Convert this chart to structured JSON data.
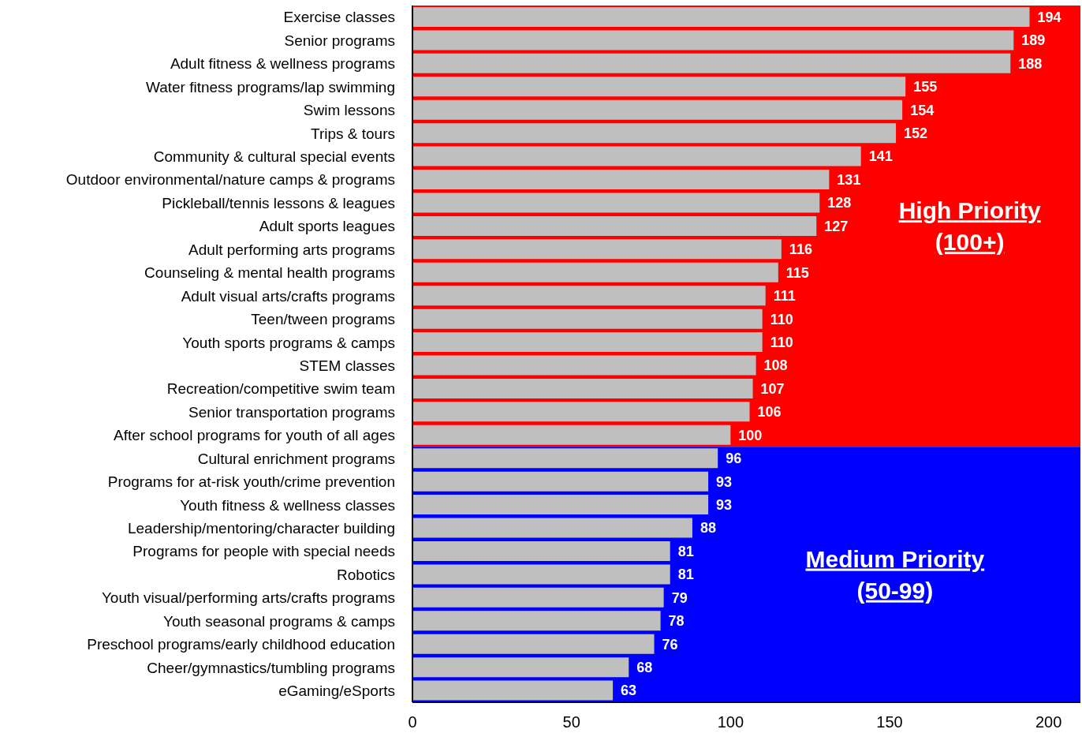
{
  "chart_data": {
    "type": "bar",
    "orientation": "horizontal",
    "categories": [
      "Exercise classes",
      "Senior programs",
      "Adult fitness & wellness programs",
      "Water fitness programs/lap swimming",
      "Swim lessons",
      "Trips & tours",
      "Community & cultural special events",
      "Outdoor environmental/nature camps & programs",
      "Pickleball/tennis lessons & leagues",
      "Adult sports leagues",
      "Adult performing arts programs",
      "Counseling & mental health programs",
      "Adult visual arts/crafts programs",
      "Teen/tween programs",
      "Youth sports programs & camps",
      "STEM classes",
      "Recreation/competitive swim team",
      "Senior transportation programs",
      "After school programs for youth of all ages",
      "Cultural enrichment programs",
      "Programs for at-risk youth/crime prevention",
      "Youth fitness & wellness classes",
      "Leadership/mentoring/character building",
      "Programs for people with special needs",
      "Robotics",
      "Youth visual/performing arts/crafts programs",
      "Youth seasonal programs & camps",
      "Preschool programs/early childhood education",
      "Cheer/gymnastics/tumbling programs",
      "eGaming/eSports"
    ],
    "values": [
      194,
      189,
      188,
      155,
      154,
      152,
      141,
      131,
      128,
      127,
      116,
      115,
      111,
      110,
      110,
      108,
      107,
      106,
      100,
      96,
      93,
      93,
      88,
      81,
      81,
      79,
      78,
      76,
      68,
      63
    ],
    "color": "#bfbfbf",
    "xlim": [
      0,
      210
    ],
    "xticks": [
      0,
      50,
      100,
      150,
      200
    ],
    "data_labels": true,
    "bands": [
      {
        "axis": "y",
        "from": "Exercise classes",
        "to": "After school programs for youth of all ages",
        "label": "High Priority\n(100+)",
        "color": "#ff0000"
      },
      {
        "axis": "y",
        "from": "Cultural enrichment programs",
        "to": "eGaming/eSports",
        "label": "Medium Priority\n(50-99)",
        "color": "#0000ff"
      }
    ]
  }
}
